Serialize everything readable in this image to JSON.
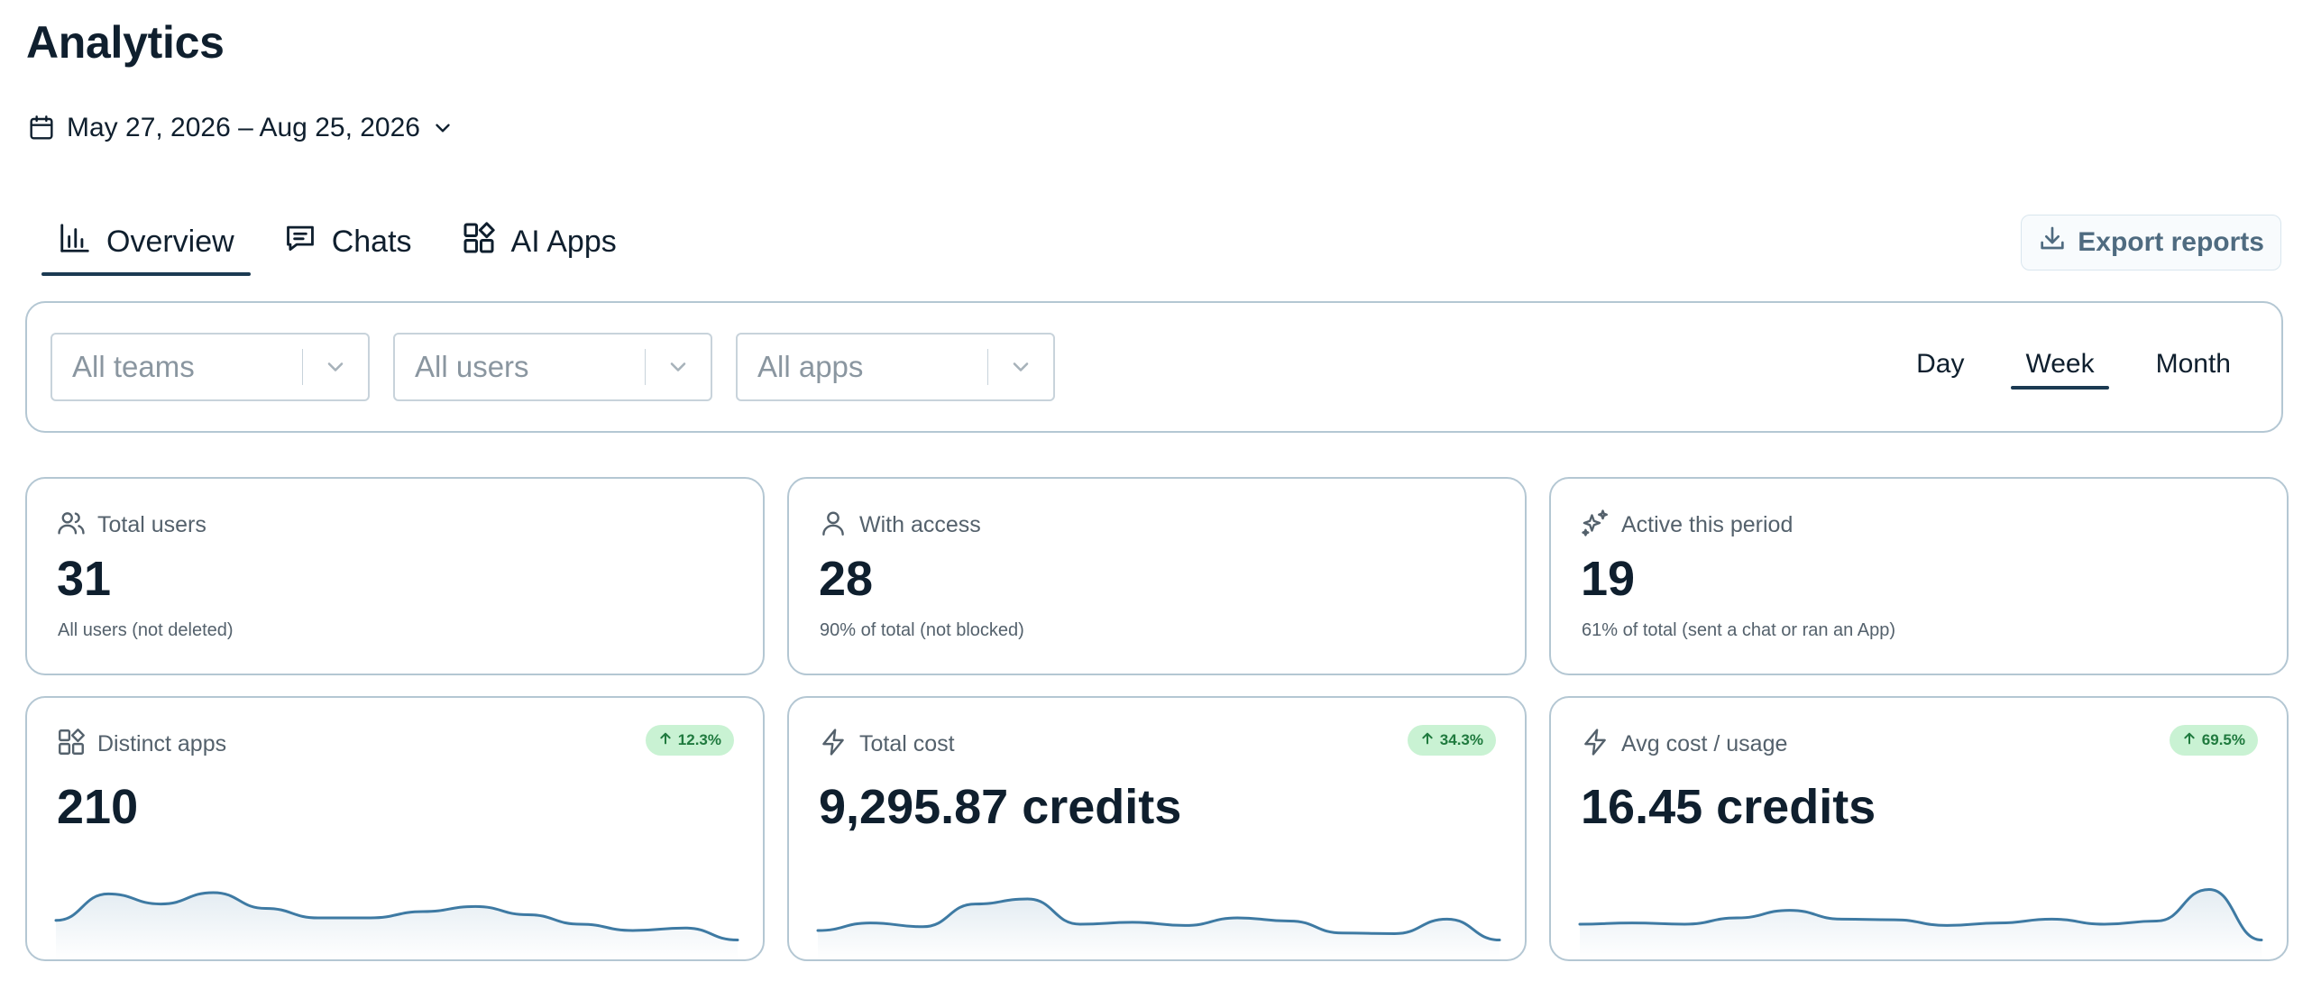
{
  "page": {
    "title": "Analytics"
  },
  "date_range": {
    "label": "May 27, 2026 – Aug 25, 2026"
  },
  "tabs": [
    {
      "label": "Overview",
      "icon": "bar-chart-icon",
      "active": true
    },
    {
      "label": "Chats",
      "icon": "chat-icon",
      "active": false
    },
    {
      "label": "AI Apps",
      "icon": "apps-icon",
      "active": false
    }
  ],
  "export": {
    "label": "Export reports",
    "icon": "download-icon"
  },
  "filters": {
    "teams": "All teams",
    "users": "All users",
    "apps": "All apps"
  },
  "period": {
    "options": [
      "Day",
      "Week",
      "Month"
    ],
    "selected": "Week"
  },
  "colors": {
    "accent": "#1b3a52",
    "border": "#b4c7d3",
    "sparkline": "#3e7aa3",
    "badge_bg": "#c9f2d3",
    "badge_text": "#1f7a3e"
  },
  "stats": [
    {
      "label": "Total users",
      "icon": "users-icon",
      "value": "31",
      "sub": "All users (not deleted)"
    },
    {
      "label": "With access",
      "icon": "user-icon",
      "value": "28",
      "sub": "90% of total (not blocked)"
    },
    {
      "label": "Active this period",
      "icon": "sparkles-icon",
      "value": "19",
      "sub": "61% of total (sent a chat or ran an App)"
    }
  ],
  "metrics": [
    {
      "label": "Distinct apps",
      "icon": "apps-icon",
      "value": "210",
      "change": "12.3%",
      "trend": [
        0.36,
        0.78,
        0.62,
        0.8,
        0.55,
        0.4,
        0.4,
        0.5,
        0.58,
        0.45,
        0.3,
        0.2,
        0.24,
        0.05
      ]
    },
    {
      "label": "Total cost",
      "icon": "bolt-icon",
      "value": "9,295.87 credits",
      "change": "34.3%",
      "trend": [
        0.2,
        0.32,
        0.26,
        0.62,
        0.7,
        0.3,
        0.33,
        0.28,
        0.4,
        0.35,
        0.16,
        0.15,
        0.38,
        0.05
      ]
    },
    {
      "label": "Avg cost / usage",
      "icon": "bolt-icon",
      "value": "16.45 credits",
      "change": "69.5%",
      "trend": [
        0.3,
        0.32,
        0.3,
        0.4,
        0.52,
        0.38,
        0.37,
        0.28,
        0.32,
        0.38,
        0.3,
        0.35,
        0.85,
        0.05
      ]
    }
  ]
}
